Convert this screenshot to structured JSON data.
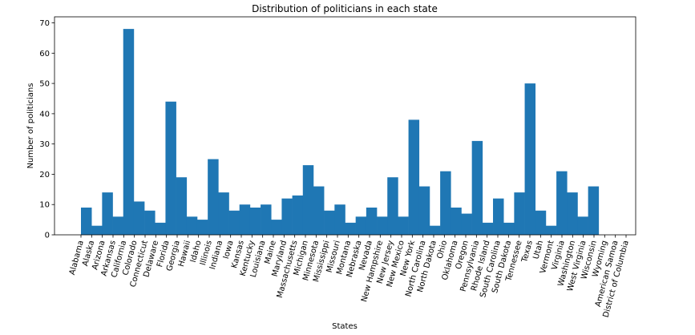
{
  "chart_data": {
    "type": "bar",
    "title": "Distribution of politicians in each state",
    "xlabel": "States",
    "ylabel": "Number of politicians",
    "ylim": [
      0,
      72
    ],
    "yticks": [
      0,
      10,
      20,
      30,
      40,
      50,
      60,
      70
    ],
    "grid": false,
    "bar_color": "#1f77b4",
    "categories": [
      "Alabama",
      "Alaska",
      "Arizona",
      "Arkansas",
      "California",
      "Colorado",
      "Connecticut",
      "Delaware",
      "Florida",
      "Georgia",
      "Hawaii",
      "Idaho",
      "Illinois",
      "Indiana",
      "Iowa",
      "Kansas",
      "Kentucky",
      "Louisiana",
      "Maine",
      "Maryland",
      "Massachusetts",
      "Michigan",
      "Minnesota",
      "Mississippi",
      "Missouri",
      "Montana",
      "Nebraska",
      "Nevada",
      "New Hampshire",
      "New Jersey",
      "New Mexico",
      "New York",
      "North Carolina",
      "North Dakota",
      "Ohio",
      "Oklahoma",
      "Oregon",
      "Pennsylvania",
      "Rhode Island",
      "South Carolina",
      "South Dakota",
      "Tennessee",
      "Texas",
      "Utah",
      "Vermont",
      "Virginia",
      "Washington",
      "West Virginia",
      "Wisconsin",
      "Wyoming",
      "American Samoa",
      "District of Columbia"
    ],
    "values": [
      9,
      3,
      14,
      6,
      68,
      11,
      8,
      4,
      44,
      19,
      6,
      5,
      25,
      14,
      8,
      10,
      9,
      10,
      5,
      12,
      13,
      23,
      16,
      8,
      10,
      4,
      6,
      9,
      6,
      19,
      6,
      38,
      16,
      3,
      21,
      9,
      7,
      31,
      4,
      12,
      4,
      14,
      50,
      8,
      3,
      21,
      14,
      6,
      16,
      0,
      0,
      0
    ]
  }
}
